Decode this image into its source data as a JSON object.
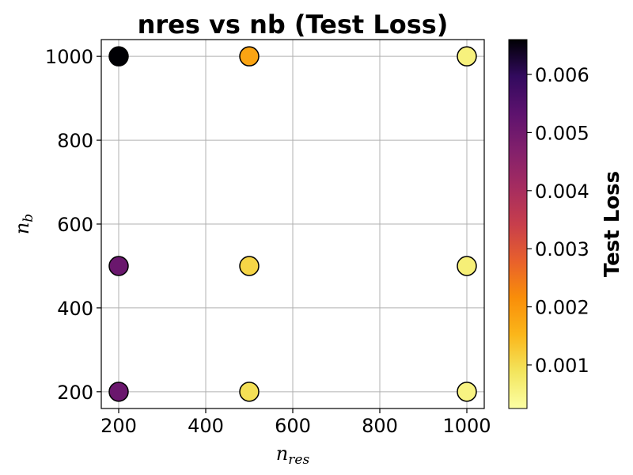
{
  "chart_data": {
    "type": "scatter",
    "title": "nres vs nb (Test Loss)",
    "xlabel_main": "n",
    "xlabel_sub": "res",
    "ylabel_main": "n",
    "ylabel_sub": "b",
    "xlim": [
      160,
      1040
    ],
    "ylim": [
      160,
      1040
    ],
    "xticks": [
      200,
      400,
      600,
      800,
      1000
    ],
    "yticks": [
      200,
      400,
      600,
      800,
      1000
    ],
    "grid": true,
    "colorbar": {
      "label": "Test Loss",
      "colormap": "inferno_r",
      "range": [
        0.00025,
        0.0066
      ],
      "ticks": [
        0.001,
        0.002,
        0.003,
        0.004,
        0.005,
        0.006
      ],
      "tick_labels": [
        "0.001",
        "0.002",
        "0.003",
        "0.004",
        "0.005",
        "0.006"
      ]
    },
    "points": [
      {
        "x": 200,
        "y": 1000,
        "loss": 0.0066
      },
      {
        "x": 200,
        "y": 500,
        "loss": 0.0051
      },
      {
        "x": 200,
        "y": 200,
        "loss": 0.0051
      },
      {
        "x": 500,
        "y": 1000,
        "loss": 0.0018
      },
      {
        "x": 500,
        "y": 500,
        "loss": 0.0011
      },
      {
        "x": 500,
        "y": 200,
        "loss": 0.00095
      },
      {
        "x": 1000,
        "y": 1000,
        "loss": 0.0006
      },
      {
        "x": 1000,
        "y": 500,
        "loss": 0.00065
      },
      {
        "x": 1000,
        "y": 200,
        "loss": 0.00055
      }
    ]
  }
}
